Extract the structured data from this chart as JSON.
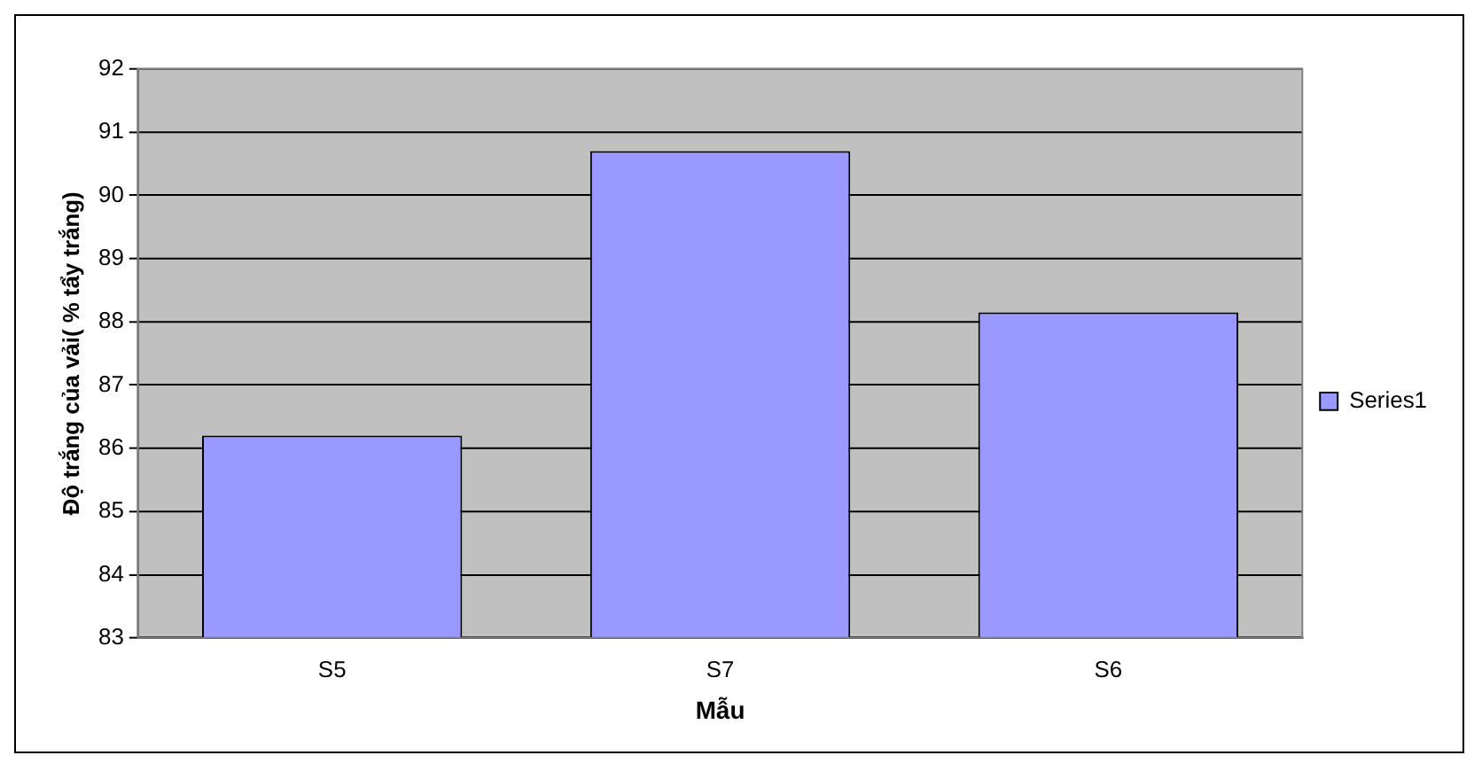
{
  "chart_data": {
    "type": "bar",
    "xlabel": "Mẫu",
    "ylabel": "Độ trắng của vải( % tẩy trắng)",
    "categories": [
      "S5",
      "S7",
      "S6"
    ],
    "series": [
      {
        "name": "Series1",
        "color": "#9999ff",
        "values": [
          86.2,
          90.7,
          88.15
        ]
      }
    ],
    "ylim": [
      83,
      92
    ],
    "yticks": [
      83,
      84,
      85,
      86,
      87,
      88,
      89,
      90,
      91,
      92
    ],
    "grid": "y",
    "legend": "right"
  }
}
